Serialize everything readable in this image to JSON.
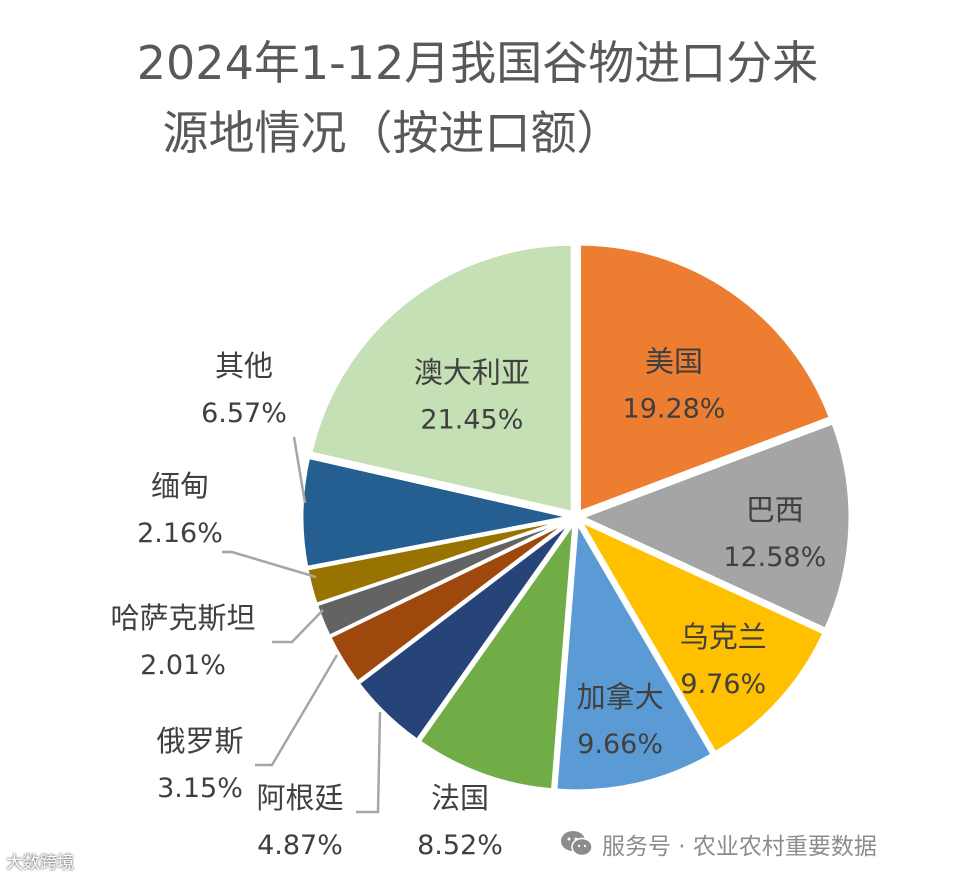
{
  "chart_data": {
    "type": "pie",
    "title_line1": "2024年1-12月我国谷物进口分来",
    "title_line2": "源地情况（按进口额）",
    "unit": "%",
    "start_angle_deg": 0,
    "direction": "clockwise",
    "slices": [
      {
        "name": "美国",
        "value": 19.28,
        "label": "19.28%",
        "color": "#ED7D31",
        "label_pos": "inside"
      },
      {
        "name": "巴西",
        "value": 12.58,
        "label": "12.58%",
        "color": "#A5A5A5",
        "label_pos": "inside"
      },
      {
        "name": "乌克兰",
        "value": 9.76,
        "label": "9.76%",
        "color": "#FFC000",
        "label_pos": "inside"
      },
      {
        "name": "加拿大",
        "value": 9.66,
        "label": "9.66%",
        "color": "#5B9BD5",
        "label_pos": "inside"
      },
      {
        "name": "法国",
        "value": 8.52,
        "label": "8.52%",
        "color": "#70AD47",
        "label_pos": "outside"
      },
      {
        "name": "阿根廷",
        "value": 4.87,
        "label": "4.87%",
        "color": "#264478",
        "label_pos": "outside"
      },
      {
        "name": "俄罗斯",
        "value": 3.15,
        "label": "3.15%",
        "color": "#9E480E",
        "label_pos": "outside"
      },
      {
        "name": "哈萨克斯坦",
        "value": 2.01,
        "label": "2.01%",
        "color": "#636363",
        "label_pos": "outside"
      },
      {
        "name": "缅甸",
        "value": 2.16,
        "label": "2.16%",
        "color": "#997300",
        "label_pos": "outside"
      },
      {
        "name": "其他",
        "value": 6.57,
        "label": "6.57%",
        "color": "#255E91",
        "label_pos": "outside"
      },
      {
        "name": "澳大利亚",
        "value": 21.45,
        "label": "21.45%",
        "color": "#C5E0B4",
        "label_pos": "inside"
      }
    ],
    "text_color": "#404040",
    "leader_color": "#A6A6A6"
  },
  "watermark": {
    "left_text": "大数跨境",
    "right_text": "服务号 · 农业农村重要数据"
  }
}
